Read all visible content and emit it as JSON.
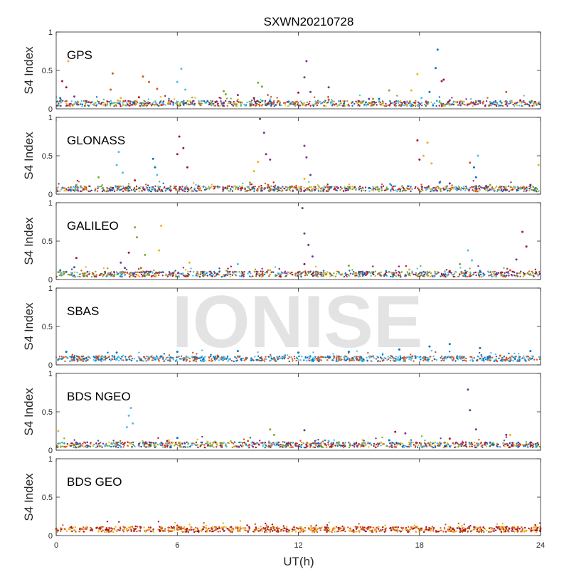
{
  "figure": {
    "title": "SXWN20210728",
    "xlabel": "UT(h)",
    "watermark": "IONISE",
    "colors": [
      "#0072BD",
      "#D95319",
      "#EDB120",
      "#7E2F8E",
      "#77AC30",
      "#4DBEEE",
      "#A2142F"
    ]
  },
  "chart_data": [
    {
      "type": "scatter",
      "panel_label": "GPS",
      "ylabel": "S4 Index",
      "xlim": [
        0,
        24
      ],
      "ylim": [
        0,
        1
      ],
      "xticks": [
        "0",
        "6",
        "12",
        "18",
        "24"
      ],
      "yticks": [
        "0",
        "0.5",
        "1"
      ],
      "baseline": 0.07,
      "series": [
        {
          "color": "#0072BD",
          "values": [
            [
              0.2,
              0.14
            ],
            [
              1.5,
              0.09
            ],
            [
              7.5,
              0.1
            ],
            [
              11.5,
              0.09
            ],
            [
              16.0,
              0.13
            ],
            [
              18.5,
              0.22
            ],
            [
              18.8,
              0.53
            ],
            [
              18.9,
              0.77
            ],
            [
              21.0,
              0.1
            ],
            [
              23.5,
              0.08
            ]
          ]
        },
        {
          "color": "#D95319",
          "values": [
            [
              2.7,
              0.25
            ],
            [
              2.8,
              0.46
            ],
            [
              4.3,
              0.42
            ],
            [
              4.6,
              0.35
            ],
            [
              5.0,
              0.26
            ],
            [
              11.0,
              0.1
            ],
            [
              13.5,
              0.12
            ],
            [
              20.0,
              0.09
            ],
            [
              22.3,
              0.22
            ]
          ]
        },
        {
          "color": "#EDB120",
          "values": [
            [
              0.6,
              0.62
            ],
            [
              3.2,
              0.14
            ],
            [
              5.6,
              0.08
            ],
            [
              9.0,
              0.12
            ],
            [
              13.0,
              0.09
            ],
            [
              17.6,
              0.24
            ],
            [
              17.9,
              0.45
            ],
            [
              23.8,
              0.07
            ]
          ]
        },
        {
          "color": "#7E2F8E",
          "values": [
            [
              0.9,
              0.16
            ],
            [
              1.5,
              0.1
            ],
            [
              9.0,
              0.18
            ],
            [
              12.3,
              0.41
            ],
            [
              12.4,
              0.62
            ],
            [
              12.6,
              0.22
            ],
            [
              13.5,
              0.28
            ],
            [
              15.5,
              0.13
            ],
            [
              19.5,
              0.11
            ]
          ]
        },
        {
          "color": "#77AC30",
          "values": [
            [
              3.9,
              0.1
            ],
            [
              8.3,
              0.23
            ],
            [
              8.4,
              0.19
            ],
            [
              10.0,
              0.34
            ],
            [
              10.2,
              0.29
            ],
            [
              15.7,
              0.13
            ],
            [
              16.5,
              0.24
            ],
            [
              20.8,
              0.1
            ]
          ]
        },
        {
          "color": "#4DBEEE",
          "values": [
            [
              6.0,
              0.35
            ],
            [
              6.2,
              0.52
            ],
            [
              6.4,
              0.25
            ],
            [
              7.4,
              0.08
            ],
            [
              14.0,
              0.1
            ],
            [
              18.1,
              0.14
            ],
            [
              21.5,
              0.09
            ]
          ]
        },
        {
          "color": "#A2142F",
          "values": [
            [
              0.3,
              0.36
            ],
            [
              0.5,
              0.28
            ],
            [
              4.1,
              0.15
            ],
            [
              9.8,
              0.14
            ],
            [
              12.0,
              0.21
            ],
            [
              19.1,
              0.36
            ],
            [
              19.2,
              0.38
            ],
            [
              23.0,
              0.11
            ]
          ]
        }
      ]
    },
    {
      "type": "scatter",
      "panel_label": "GLONASS",
      "ylabel": "S4 Index",
      "xlim": [
        0,
        24
      ],
      "ylim": [
        0,
        1
      ],
      "xticks": [
        "0",
        "6",
        "12",
        "18",
        "24"
      ],
      "yticks": [
        "0",
        "0.5",
        "1"
      ],
      "baseline": 0.07,
      "series": [
        {
          "color": "#0072BD",
          "values": [
            [
              4.8,
              0.46
            ],
            [
              4.9,
              0.35
            ],
            [
              8.0,
              0.1
            ],
            [
              11.0,
              0.09
            ],
            [
              15.5,
              0.08
            ],
            [
              19.0,
              0.15
            ],
            [
              20.7,
              0.35
            ],
            [
              20.8,
              0.22
            ]
          ]
        },
        {
          "color": "#D95319",
          "values": [
            [
              3.1,
              0.1
            ],
            [
              6.5,
              0.08
            ],
            [
              10.5,
              0.12
            ],
            [
              13.5,
              0.09
            ],
            [
              17.0,
              0.07
            ],
            [
              20.5,
              0.41
            ],
            [
              22.0,
              0.09
            ]
          ]
        },
        {
          "color": "#EDB120",
          "values": [
            [
              9.8,
              0.3
            ],
            [
              10.0,
              0.42
            ],
            [
              12.3,
              0.2
            ],
            [
              18.2,
              0.5
            ],
            [
              18.4,
              0.67
            ],
            [
              18.6,
              0.4
            ],
            [
              23.9,
              0.38
            ]
          ]
        },
        {
          "color": "#7E2F8E",
          "values": [
            [
              10.1,
              0.98
            ],
            [
              10.3,
              0.8
            ],
            [
              10.4,
              0.52
            ],
            [
              10.6,
              0.45
            ],
            [
              12.3,
              0.63
            ],
            [
              12.4,
              0.48
            ],
            [
              12.6,
              0.25
            ],
            [
              19.5,
              0.14
            ]
          ]
        },
        {
          "color": "#77AC30",
          "values": [
            [
              1.0,
              0.12
            ],
            [
              2.1,
              0.22
            ],
            [
              9.6,
              0.15
            ],
            [
              14.5,
              0.08
            ],
            [
              21.5,
              0.12
            ]
          ]
        },
        {
          "color": "#4DBEEE",
          "values": [
            [
              3.0,
              0.38
            ],
            [
              3.1,
              0.55
            ],
            [
              3.3,
              0.28
            ],
            [
              5.0,
              0.25
            ],
            [
              15.0,
              0.08
            ],
            [
              20.9,
              0.5
            ],
            [
              23.0,
              0.07
            ]
          ]
        },
        {
          "color": "#A2142F",
          "values": [
            [
              3.9,
              0.18
            ],
            [
              6.0,
              0.52
            ],
            [
              6.1,
              0.75
            ],
            [
              6.3,
              0.6
            ],
            [
              6.5,
              0.35
            ],
            [
              17.9,
              0.7
            ],
            [
              18.0,
              0.45
            ],
            [
              23.5,
              0.12
            ]
          ]
        }
      ]
    },
    {
      "type": "scatter",
      "panel_label": "GALILEO",
      "ylabel": "S4 Index",
      "xlim": [
        0,
        24
      ],
      "ylim": [
        0,
        1
      ],
      "xticks": [
        "0",
        "6",
        "12",
        "18",
        "24"
      ],
      "yticks": [
        "0",
        "0.5",
        "1"
      ],
      "baseline": 0.07,
      "series": [
        {
          "color": "#0072BD",
          "values": [
            [
              0.2,
              0.12
            ],
            [
              0.5,
              0.1
            ],
            [
              0.9,
              0.16
            ],
            [
              8.0,
              0.07
            ],
            [
              15.0,
              0.09
            ],
            [
              21.0,
              0.1
            ]
          ]
        },
        {
          "color": "#D95319",
          "values": [
            [
              4.2,
              0.15
            ],
            [
              7.0,
              0.08
            ],
            [
              12.5,
              0.1
            ],
            [
              16.0,
              0.08
            ],
            [
              22.5,
              0.12
            ]
          ]
        },
        {
          "color": "#EDB120",
          "values": [
            [
              5.2,
              0.7
            ],
            [
              5.1,
              0.38
            ],
            [
              6.6,
              0.22
            ],
            [
              14.8,
              0.08
            ],
            [
              17.5,
              0.13
            ]
          ]
        },
        {
          "color": "#7E2F8E",
          "values": [
            [
              3.2,
              0.22
            ],
            [
              3.4,
              0.15
            ],
            [
              12.2,
              0.93
            ],
            [
              12.3,
              0.6
            ],
            [
              12.5,
              0.45
            ],
            [
              12.7,
              0.3
            ],
            [
              22.8,
              0.26
            ]
          ]
        },
        {
          "color": "#77AC30",
          "values": [
            [
              3.9,
              0.68
            ],
            [
              4.0,
              0.55
            ],
            [
              4.4,
              0.32
            ],
            [
              14.5,
              0.18
            ],
            [
              16.5,
              0.1
            ],
            [
              20.0,
              0.2
            ]
          ]
        },
        {
          "color": "#4DBEEE",
          "values": [
            [
              7.0,
              0.1
            ],
            [
              9.0,
              0.2
            ],
            [
              11.0,
              0.08
            ],
            [
              20.4,
              0.38
            ],
            [
              20.6,
              0.25
            ]
          ]
        },
        {
          "color": "#A2142F",
          "values": [
            [
              1.0,
              0.28
            ],
            [
              3.6,
              0.35
            ],
            [
              12.3,
              0.2
            ],
            [
              19.5,
              0.11
            ],
            [
              23.1,
              0.62
            ],
            [
              23.3,
              0.43
            ]
          ]
        }
      ]
    },
    {
      "type": "scatter",
      "panel_label": "SBAS",
      "ylabel": "S4 Index",
      "xlim": [
        0,
        24
      ],
      "ylim": [
        0,
        1
      ],
      "xticks": [
        "0",
        "6",
        "12",
        "18",
        "24"
      ],
      "yticks": [
        "0",
        "0.5",
        "1"
      ],
      "baseline": 0.08,
      "series": [
        {
          "color": "#0072BD",
          "values": [
            [
              0.5,
              0.17
            ],
            [
              3.0,
              0.16
            ],
            [
              6.0,
              0.17
            ],
            [
              9.0,
              0.18
            ],
            [
              12.0,
              0.16
            ],
            [
              14.5,
              0.17
            ],
            [
              17.0,
              0.2
            ],
            [
              18.5,
              0.24
            ],
            [
              19.5,
              0.27
            ],
            [
              21.0,
              0.22
            ],
            [
              23.5,
              0.18
            ]
          ]
        },
        {
          "color": "#D95319",
          "values": [
            [
              2.0,
              0.11
            ],
            [
              8.0,
              0.12
            ],
            [
              14.0,
              0.11
            ],
            [
              22.0,
              0.12
            ]
          ]
        },
        {
          "color": "#4DBEEE",
          "values": [
            [
              5.0,
              0.09
            ],
            [
              11.0,
              0.1
            ],
            [
              18.0,
              0.1
            ]
          ]
        }
      ]
    },
    {
      "type": "scatter",
      "panel_label": "BDS NGEO",
      "ylabel": "S4 Index",
      "xlim": [
        0,
        24
      ],
      "ylim": [
        0,
        1
      ],
      "xticks": [
        "0",
        "6",
        "12",
        "18",
        "24"
      ],
      "yticks": [
        "0",
        "0.5",
        "1"
      ],
      "baseline": 0.07,
      "series": [
        {
          "color": "#0072BD",
          "values": [
            [
              1.0,
              0.1
            ],
            [
              6.0,
              0.16
            ],
            [
              13.0,
              0.09
            ],
            [
              16.5,
              0.13
            ],
            [
              21.5,
              0.1
            ]
          ]
        },
        {
          "color": "#D95319",
          "values": [
            [
              3.0,
              0.09
            ],
            [
              9.5,
              0.12
            ],
            [
              15.0,
              0.08
            ],
            [
              23.0,
              0.07
            ]
          ]
        },
        {
          "color": "#EDB120",
          "values": [
            [
              0.1,
              0.25
            ],
            [
              7.5,
              0.11
            ],
            [
              17.5,
              0.1
            ],
            [
              22.5,
              0.2
            ]
          ]
        },
        {
          "color": "#7E2F8E",
          "values": [
            [
              12.3,
              0.26
            ],
            [
              17.3,
              0.22
            ],
            [
              20.4,
              0.79
            ],
            [
              20.5,
              0.52
            ],
            [
              20.8,
              0.27
            ],
            [
              22.3,
              0.2
            ]
          ]
        },
        {
          "color": "#77AC30",
          "values": [
            [
              10.6,
              0.27
            ],
            [
              10.8,
              0.2
            ],
            [
              14.0,
              0.1
            ]
          ]
        },
        {
          "color": "#4DBEEE",
          "values": [
            [
              3.5,
              0.3
            ],
            [
              3.6,
              0.45
            ],
            [
              3.7,
              0.55
            ],
            [
              3.8,
              0.35
            ],
            [
              13.5,
              0.12
            ]
          ]
        },
        {
          "color": "#A2142F",
          "values": [
            [
              5.5,
              0.12
            ],
            [
              11.5,
              0.09
            ],
            [
              16.8,
              0.24
            ],
            [
              19.5,
              0.15
            ],
            [
              23.5,
              0.1
            ]
          ]
        }
      ]
    },
    {
      "type": "scatter",
      "panel_label": "BDS GEO",
      "ylabel": "S4 Index",
      "xlim": [
        0,
        24
      ],
      "ylim": [
        0,
        1
      ],
      "xticks": [
        "0",
        "6",
        "12",
        "18",
        "24"
      ],
      "yticks": [
        "0",
        "0.5",
        "1"
      ],
      "baseline": 0.08,
      "series": [
        {
          "color": "#D95319",
          "values": [
            [
              0.0,
              0.09
            ],
            [
              6.0,
              0.08
            ],
            [
              12.0,
              0.09
            ],
            [
              18.0,
              0.08
            ],
            [
              24.0,
              0.09
            ]
          ]
        },
        {
          "color": "#EDB120",
          "values": [
            [
              3.0,
              0.06
            ],
            [
              9.0,
              0.07
            ],
            [
              15.0,
              0.06
            ],
            [
              21.0,
              0.07
            ]
          ]
        },
        {
          "color": "#A2142F",
          "values": [
            [
              2.0,
              0.1
            ],
            [
              8.0,
              0.09
            ],
            [
              14.0,
              0.1
            ],
            [
              20.0,
              0.09
            ]
          ]
        }
      ]
    }
  ]
}
